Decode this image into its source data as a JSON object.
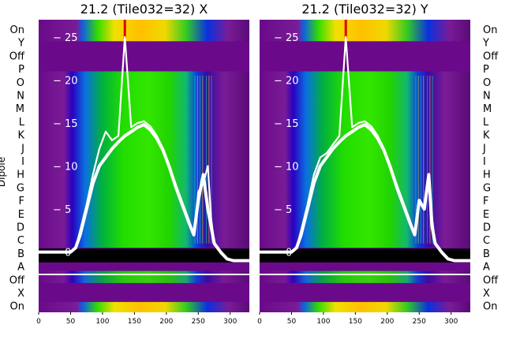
{
  "figure": {
    "ylabel": "Dipole",
    "dipole_labels": [
      "On",
      "Y",
      "Off",
      "P",
      "O",
      "N",
      "M",
      "L",
      "K",
      "J",
      "I",
      "H",
      "G",
      "F",
      "E",
      "D",
      "C",
      "B",
      "A",
      "Off",
      "X",
      "On"
    ]
  },
  "chart_data": [
    {
      "type": "heatmap",
      "title": "21.2 (Tile032=32) X",
      "xlim": [
        0,
        330
      ],
      "ylim": [
        -7,
        27
      ],
      "x_ticks": [
        0,
        50,
        100,
        150,
        200,
        250,
        300
      ],
      "y_ticks": [
        0,
        5,
        10,
        15,
        20,
        25
      ],
      "x_tick_labels": [
        "0",
        "50",
        "100",
        "150",
        "200",
        "250",
        "300"
      ],
      "y_tick_labels": [
        "− 0",
        "− 5",
        "− 10",
        "− 15",
        "− 20",
        "− 25"
      ],
      "colormap": "nipy_spectral",
      "series": [
        {
          "x": [
            0,
            50,
            58,
            65,
            75,
            85,
            95,
            105,
            115,
            125,
            135,
            145,
            155,
            165,
            175,
            185,
            195,
            205,
            215,
            225,
            235,
            243,
            250,
            258,
            265,
            270,
            275,
            285,
            295,
            305,
            315,
            330
          ],
          "values": [
            0,
            0,
            0.5,
            2,
            5,
            8,
            10,
            11,
            12,
            12.8,
            13.5,
            14,
            14.5,
            14.8,
            14.2,
            13.2,
            11.8,
            9.8,
            7.5,
            5.5,
            3.5,
            2,
            6,
            9,
            5,
            3,
            1,
            0,
            -0.8,
            -1,
            -1,
            -1
          ]
        },
        {
          "x": [
            0,
            50,
            58,
            65,
            75,
            85,
            95,
            105,
            115,
            125,
            135,
            145,
            155,
            165,
            175,
            185,
            195,
            205,
            215,
            225,
            235,
            243,
            250,
            258,
            265,
            270,
            275,
            285,
            295,
            305,
            315,
            330
          ],
          "values": [
            0,
            0,
            0.5,
            2.5,
            5.5,
            9,
            12,
            14,
            13,
            13.5,
            25,
            14.5,
            15,
            15.2,
            14.6,
            13.5,
            12,
            10,
            7.8,
            5.8,
            3.8,
            2,
            7,
            8,
            10,
            4,
            1,
            0,
            -0.8,
            -1,
            -1,
            -1
          ]
        }
      ]
    },
    {
      "type": "heatmap",
      "title": "21.2 (Tile032=32) Y",
      "xlim": [
        0,
        330
      ],
      "ylim": [
        -7,
        27
      ],
      "x_ticks": [
        0,
        50,
        100,
        150,
        200,
        250,
        300
      ],
      "y_ticks": [
        0,
        5,
        10,
        15,
        20,
        25
      ],
      "x_tick_labels": [
        "0",
        "50",
        "100",
        "150",
        "200",
        "250",
        "300"
      ],
      "y_tick_labels": [
        "− 0",
        "− 5",
        "− 10",
        "− 15",
        "− 20",
        "− 25"
      ],
      "colormap": "nipy_spectral",
      "series": [
        {
          "x": [
            0,
            50,
            58,
            65,
            75,
            85,
            95,
            105,
            115,
            125,
            135,
            145,
            155,
            165,
            175,
            185,
            195,
            205,
            215,
            225,
            235,
            243,
            250,
            258,
            265,
            270,
            275,
            285,
            295,
            305,
            315,
            330
          ],
          "values": [
            0,
            0,
            0.5,
            2,
            5,
            8,
            10,
            11,
            12,
            12.8,
            13.5,
            14,
            14.5,
            14.8,
            14.2,
            13.2,
            11.8,
            9.8,
            7.5,
            5.5,
            3.5,
            2,
            6,
            5,
            9,
            3,
            1,
            0,
            -0.8,
            -1,
            -1,
            -1
          ]
        },
        {
          "x": [
            0,
            50,
            58,
            65,
            75,
            85,
            95,
            105,
            115,
            125,
            135,
            145,
            155,
            165,
            175,
            185,
            195,
            205,
            215,
            225,
            235,
            243,
            250,
            258,
            265,
            270,
            275,
            285,
            295,
            305,
            315,
            330
          ],
          "values": [
            0,
            0,
            0.5,
            2.5,
            5.5,
            9,
            11,
            11.5,
            12.5,
            13.5,
            25,
            14.5,
            15,
            15.2,
            14.6,
            13.5,
            12,
            10,
            7.8,
            5.8,
            3.8,
            2,
            6,
            5,
            8,
            4,
            1,
            0,
            -0.8,
            -1,
            -1,
            -1
          ]
        }
      ]
    }
  ]
}
